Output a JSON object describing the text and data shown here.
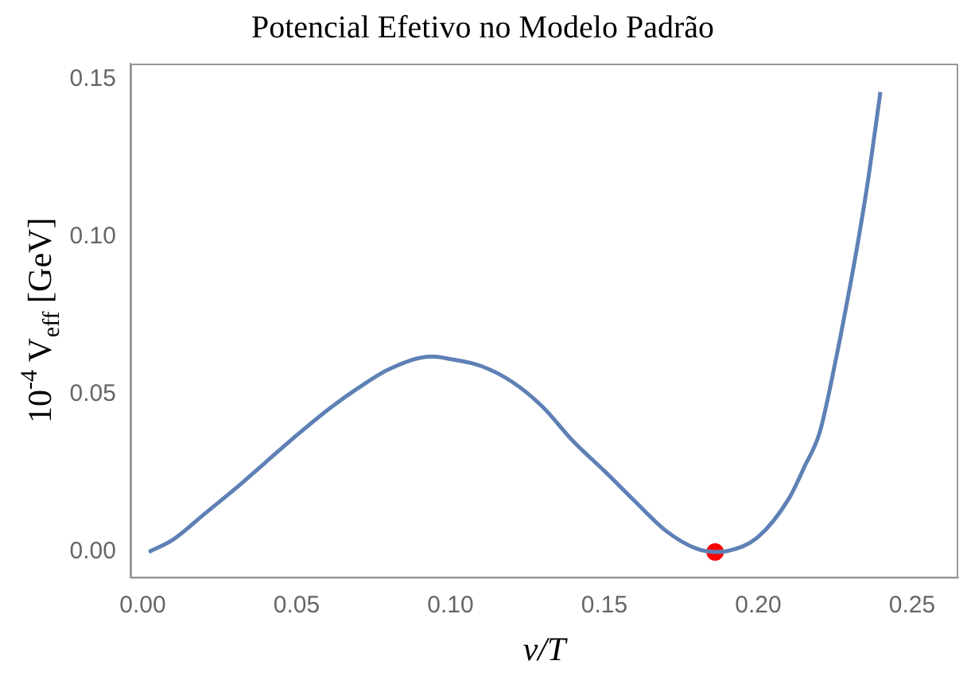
{
  "chart_data": {
    "type": "line",
    "title": "Potencial Efetivo no Modelo Padrão",
    "xlabel": "ν/T",
    "ylabel": "10$^{-4}$ V$_{eff}$ [GeV]",
    "xlim": [
      -0.004,
      0.265
    ],
    "xticks": [
      {
        "value": 0,
        "label": "0.00"
      },
      0.05,
      {
        "value": 0.1,
        "label": "0.10"
      },
      0.15,
      {
        "value": 0.2,
        "label": "0.20"
      },
      0.25
    ],
    "ylim": [
      -0.008,
      0.155
    ],
    "yticks": [
      {
        "value": 0,
        "label": "0.00"
      },
      0.05,
      {
        "value": 0.1,
        "label": "0.10"
      },
      0.15
    ],
    "grid": false,
    "legend": false,
    "marker": "none",
    "line_style": "solid",
    "series": [
      {
        "color": "#5e81b5",
        "x": [
          0.002,
          0.01,
          0.02,
          0.03,
          0.04,
          0.05,
          0.06,
          0.07,
          0.08,
          0.094,
          0.1,
          0.11,
          0.12,
          0.13,
          0.14,
          0.15,
          0.16,
          0.17,
          0.18,
          0.186,
          0.19,
          0.2,
          0.21,
          0.215,
          0.22,
          0.225,
          0.229,
          0.2327,
          0.236,
          0.2397
        ],
        "values": [
          0,
          0.004,
          0.012,
          0.02,
          0.0285,
          0.037,
          0.045,
          0.052,
          0.058,
          0.062,
          0.0612,
          0.059,
          0.054,
          0.046,
          0.035,
          0.0257,
          0.016,
          0.0067,
          0.001,
          0,
          0.0003,
          0.0048,
          0.017,
          0.027,
          0.038,
          0.06,
          0.08,
          0.1,
          0.12,
          0.146
        ]
      },
      {
        "type": "scatter",
        "color": "#ff0000",
        "marker": "circle",
        "x": [
          0.186
        ],
        "values": [
          0
        ]
      }
    ]
  }
}
